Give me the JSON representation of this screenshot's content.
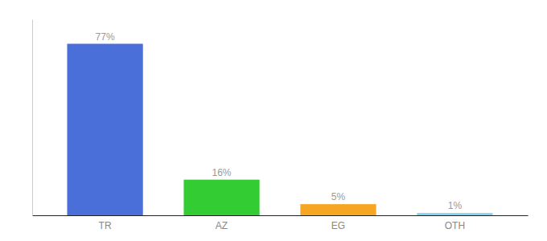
{
  "chart_data": {
    "type": "bar",
    "categories": [
      "TR",
      "AZ",
      "EG",
      "OTH"
    ],
    "values": [
      77,
      16,
      5,
      1
    ],
    "value_labels": [
      "77%",
      "16%",
      "5%",
      "1%"
    ],
    "data_labels": true,
    "colors": [
      "#4a6fd8",
      "#33cc33",
      "#f5a623",
      "#7dd4f0"
    ],
    "ylim": [
      0,
      88
    ],
    "tick_labels": "x"
  }
}
